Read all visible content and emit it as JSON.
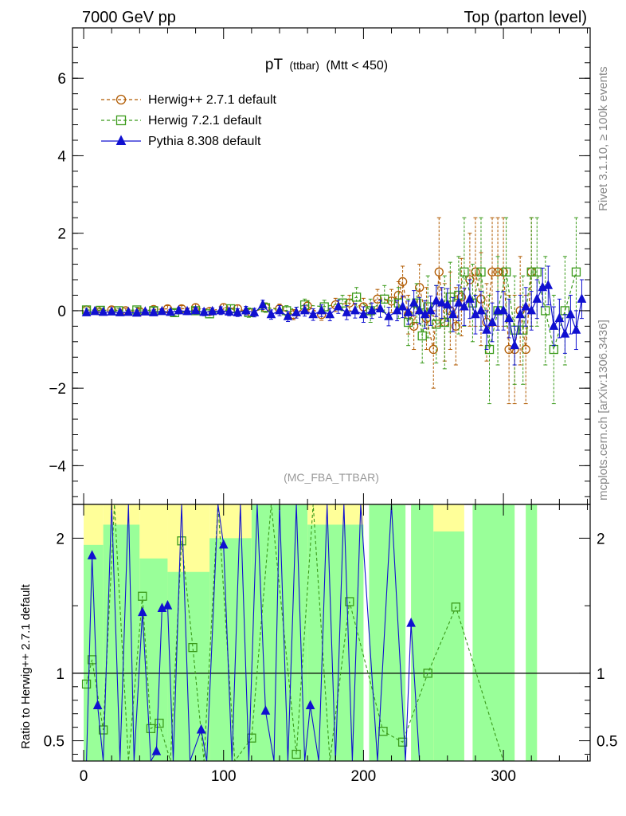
{
  "header": {
    "left": "7000 GeV pp",
    "right": "Top (parton level)"
  },
  "side_labels": {
    "rivet": "Rivet 3.1.10, ≥ 100k events",
    "mcplots": "mcplots.cern.ch [arXiv:1306.3436]"
  },
  "chart_data": [
    {
      "type": "line",
      "title_main": "pT",
      "title_sub": "(ttbar)",
      "title_cut": "(Mtt < 450)",
      "watermark": "(MC_FBA_TTBAR)",
      "xlabel": "",
      "ylabel": "",
      "xlim": [
        -8,
        362
      ],
      "ylim": [
        -5,
        7.3
      ],
      "yticks": [
        -4,
        -2,
        0,
        2,
        4,
        6
      ],
      "yticklabels": [
        "−4",
        "−2",
        "0",
        "2",
        "4",
        "6"
      ],
      "legend_position": "top-left",
      "series": [
        {
          "name": "Herwig++ 2.7.1 default",
          "color": "#b05a00",
          "marker": "circle",
          "dash": "dashed",
          "x": [
            2,
            10,
            20,
            30,
            40,
            50,
            60,
            70,
            80,
            90,
            100,
            110,
            120,
            130,
            140,
            150,
            160,
            170,
            180,
            190,
            200,
            210,
            220,
            225,
            228,
            232,
            236,
            240,
            245,
            250,
            254,
            258,
            262,
            266,
            270,
            276,
            280,
            284,
            288,
            292,
            296,
            300,
            304,
            308,
            312,
            316,
            320
          ],
          "y": [
            0.02,
            0.0,
            0.02,
            0.0,
            -0.02,
            0.03,
            0.05,
            0.05,
            0.08,
            -0.02,
            0.08,
            0.05,
            -0.05,
            0.08,
            0.05,
            -0.1,
            0.12,
            -0.1,
            0.15,
            0.2,
            0.1,
            0.3,
            0.25,
            0.4,
            0.75,
            -0.1,
            -0.4,
            0.6,
            -0.2,
            -1.0,
            1.0,
            -0.3,
            0.0,
            -0.4,
            0.35,
            0.8,
            1.0,
            0.3,
            -0.3,
            1.0,
            1.0,
            1.0,
            -1.0,
            -1.0,
            0.0,
            -1.0,
            1.0
          ],
          "err": [
            0.05,
            0.05,
            0.06,
            0.06,
            0.07,
            0.07,
            0.08,
            0.08,
            0.09,
            0.09,
            0.1,
            0.1,
            0.1,
            0.12,
            0.12,
            0.13,
            0.14,
            0.15,
            0.17,
            0.2,
            0.22,
            0.25,
            0.3,
            0.35,
            0.4,
            0.5,
            0.6,
            0.6,
            0.8,
            1.0,
            1.4,
            1.0,
            1.0,
            1.0,
            1.0,
            1.2,
            1.4,
            1.2,
            1.0,
            1.4,
            1.4,
            1.4,
            1.4,
            1.4,
            1.4,
            1.4,
            1.4
          ]
        },
        {
          "name": "Herwig 7.2.1 default",
          "color": "#3a9a1a",
          "marker": "square",
          "dash": "dashed",
          "x": [
            2,
            12,
            25,
            38,
            50,
            65,
            80,
            90,
            105,
            118,
            130,
            145,
            158,
            172,
            185,
            195,
            205,
            215,
            225,
            232,
            238,
            242,
            246,
            252,
            258,
            262,
            268,
            272,
            278,
            284,
            290,
            296,
            302,
            308,
            314,
            320,
            324,
            330,
            336,
            344,
            352
          ],
          "y": [
            0.02,
            0.01,
            0.0,
            0.02,
            0.0,
            -0.05,
            0.0,
            -0.08,
            0.05,
            -0.05,
            0.08,
            0.0,
            0.15,
            0.1,
            0.2,
            0.35,
            0.0,
            0.3,
            0.2,
            -0.3,
            0.2,
            -0.65,
            0.1,
            -0.35,
            -0.3,
            0.35,
            0.4,
            1.0,
            0.2,
            1.0,
            -1.0,
            0.0,
            1.0,
            -0.5,
            -0.5,
            1.0,
            1.0,
            0.0,
            -1.0,
            0.0,
            1.0
          ],
          "err": [
            0.05,
            0.05,
            0.06,
            0.07,
            0.08,
            0.08,
            0.09,
            0.1,
            0.1,
            0.12,
            0.12,
            0.13,
            0.15,
            0.17,
            0.2,
            0.25,
            0.3,
            0.35,
            0.4,
            0.6,
            0.5,
            0.7,
            0.8,
            1.0,
            1.2,
            0.9,
            1.0,
            1.4,
            1.0,
            1.4,
            1.4,
            1.4,
            1.4,
            1.4,
            1.4,
            1.4,
            1.4,
            1.4,
            1.4,
            1.4,
            1.4
          ]
        },
        {
          "name": "Pythia 8.308 default",
          "color": "#1010d0",
          "marker": "triangle",
          "dash": "solid",
          "x": [
            2,
            8,
            14,
            20,
            26,
            32,
            38,
            44,
            50,
            56,
            62,
            68,
            74,
            80,
            86,
            92,
            98,
            104,
            110,
            116,
            122,
            128,
            134,
            140,
            146,
            152,
            158,
            164,
            170,
            176,
            182,
            188,
            194,
            200,
            206,
            212,
            218,
            224,
            228,
            232,
            236,
            240,
            244,
            248,
            252,
            256,
            260,
            264,
            268,
            272,
            276,
            280,
            284,
            288,
            292,
            296,
            300,
            304,
            308,
            312,
            316,
            320,
            324,
            328,
            332,
            336,
            340,
            344,
            348,
            352,
            356
          ],
          "y": [
            -0.05,
            -0.02,
            -0.04,
            -0.03,
            -0.05,
            -0.04,
            -0.06,
            -0.03,
            -0.05,
            -0.02,
            -0.04,
            0.0,
            -0.02,
            0.0,
            -0.04,
            -0.02,
            0.0,
            -0.03,
            -0.05,
            0.0,
            -0.05,
            0.15,
            -0.1,
            0.0,
            -0.15,
            -0.05,
            0.0,
            -0.1,
            0.0,
            -0.1,
            0.1,
            -0.05,
            0.0,
            -0.1,
            0.0,
            0.05,
            -0.15,
            0.0,
            0.1,
            -0.05,
            0.2,
            0.0,
            -0.1,
            0.0,
            0.25,
            0.2,
            0.15,
            -0.1,
            0.2,
            0.1,
            0.3,
            -0.1,
            0.0,
            -0.5,
            -0.3,
            0.0,
            0.0,
            -0.2,
            -0.9,
            -0.1,
            0.1,
            0.0,
            0.3,
            0.6,
            0.65,
            -0.4,
            -0.2,
            -0.6,
            -0.1,
            -0.5,
            0.3
          ],
          "err": [
            0.04,
            0.04,
            0.05,
            0.05,
            0.05,
            0.06,
            0.06,
            0.06,
            0.07,
            0.07,
            0.07,
            0.08,
            0.08,
            0.08,
            0.09,
            0.09,
            0.1,
            0.1,
            0.1,
            0.11,
            0.11,
            0.12,
            0.12,
            0.13,
            0.13,
            0.14,
            0.14,
            0.15,
            0.15,
            0.16,
            0.17,
            0.18,
            0.19,
            0.2,
            0.2,
            0.22,
            0.24,
            0.26,
            0.28,
            0.3,
            0.32,
            0.34,
            0.36,
            0.38,
            0.4,
            0.4,
            0.42,
            0.44,
            0.46,
            0.48,
            0.5,
            0.5,
            0.5,
            0.5,
            0.5,
            0.5,
            0.5,
            0.5,
            0.5,
            0.5,
            0.5,
            0.5,
            0.5,
            0.5,
            0.5,
            0.5,
            0.5,
            0.5,
            0.5,
            0.5,
            0.5
          ]
        }
      ]
    },
    {
      "type": "line",
      "ylabel": "Ratio to Herwig++ 2.7.1 default",
      "xlabel": "",
      "xlim": [
        -8,
        362
      ],
      "ylim": [
        0.35,
        2.25
      ],
      "yticks": [
        0.5,
        1,
        2
      ],
      "yticklabels": [
        "0.5",
        "1",
        "2"
      ],
      "xticks": [
        0,
        100,
        200,
        300
      ],
      "xticklabels": [
        "0",
        "100",
        "200",
        "300"
      ],
      "reference_line": 1,
      "bands": {
        "yellow_color": "#ffff99",
        "green_color": "#99ff99",
        "segments": [
          {
            "x0": 0,
            "x1": 14,
            "ylow": 0.35,
            "yhigh": 2.25,
            "green_low": 0.35,
            "green_high": 1.95
          },
          {
            "x0": 14,
            "x1": 40,
            "ylow": 0.35,
            "yhigh": 2.25,
            "green_low": 0.35,
            "green_high": 2.1
          },
          {
            "x0": 40,
            "x1": 60,
            "ylow": 0.35,
            "yhigh": 2.25,
            "green_low": 0.35,
            "green_high": 1.85
          },
          {
            "x0": 60,
            "x1": 90,
            "ylow": 0.35,
            "yhigh": 2.25,
            "green_low": 0.35,
            "green_high": 1.75
          },
          {
            "x0": 90,
            "x1": 120,
            "ylow": 0.35,
            "yhigh": 2.25,
            "green_low": 0.35,
            "green_high": 2.0
          },
          {
            "x0": 120,
            "x1": 160,
            "ylow": 0.35,
            "yhigh": 2.25,
            "green_low": 0.35,
            "green_high": 2.25
          },
          {
            "x0": 160,
            "x1": 200,
            "ylow": 0.35,
            "yhigh": 2.25,
            "green_low": 0.35,
            "green_high": 2.1
          },
          {
            "x0": 204,
            "x1": 230,
            "ylow": 0.35,
            "yhigh": 2.25,
            "green_low": 0.35,
            "green_high": 2.25
          },
          {
            "x0": 234,
            "x1": 250,
            "ylow": 0.35,
            "yhigh": 2.25,
            "green_low": 0.35,
            "green_high": 2.25
          },
          {
            "x0": 250,
            "x1": 272,
            "ylow": 0.35,
            "yhigh": 2.25,
            "green_low": 0.35,
            "green_high": 2.05
          },
          {
            "x0": 278,
            "x1": 308,
            "ylow": 0.35,
            "yhigh": 2.25,
            "green_low": 0.35,
            "green_high": 2.25
          },
          {
            "x0": 316,
            "x1": 324,
            "ylow": 0.35,
            "yhigh": 2.25,
            "green_low": 0.35,
            "green_high": 2.25
          }
        ]
      },
      "series": [
        {
          "name": "Herwig 7.2.1 default",
          "color": "#3a9a1a",
          "marker": "square",
          "dash": "dashed",
          "x": [
            2,
            6,
            14,
            22,
            32,
            42,
            48,
            54,
            62,
            70,
            78,
            86,
            96,
            108,
            120,
            134,
            152,
            164,
            176,
            190,
            214,
            228,
            246,
            266,
            300
          ],
          "y": [
            0.92,
            1.1,
            0.58,
            2.25,
            0.35,
            1.57,
            0.59,
            0.63,
            0.35,
            1.98,
            1.19,
            0.35,
            2.25,
            0.35,
            0.52,
            2.25,
            0.4,
            2.25,
            0.35,
            1.53,
            0.57,
            0.49,
            1.0,
            1.49,
            0.35
          ]
        },
        {
          "name": "Pythia 8.308 default",
          "color": "#1010d0",
          "marker": "triangle",
          "dash": "solid",
          "x": [
            2,
            6,
            10,
            14,
            20,
            26,
            32,
            36,
            42,
            48,
            52,
            56,
            60,
            64,
            70,
            76,
            84,
            88,
            96,
            100,
            106,
            112,
            118,
            124,
            130,
            136,
            140,
            146,
            152,
            158,
            162,
            168,
            174,
            180,
            186,
            192,
            198,
            210,
            220,
            230,
            234,
            240
          ],
          "y": [
            0.35,
            1.87,
            0.76,
            0.35,
            2.25,
            0.35,
            2.25,
            0.35,
            1.45,
            0.35,
            0.42,
            1.48,
            1.5,
            0.35,
            2.25,
            0.35,
            0.58,
            0.35,
            2.25,
            1.95,
            0.35,
            2.25,
            0.35,
            2.25,
            0.72,
            0.35,
            2.25,
            0.35,
            2.25,
            0.35,
            0.76,
            0.35,
            2.25,
            0.35,
            2.25,
            0.35,
            2.25,
            0.35,
            2.25,
            0.35,
            1.37,
            0.35
          ]
        }
      ]
    }
  ]
}
